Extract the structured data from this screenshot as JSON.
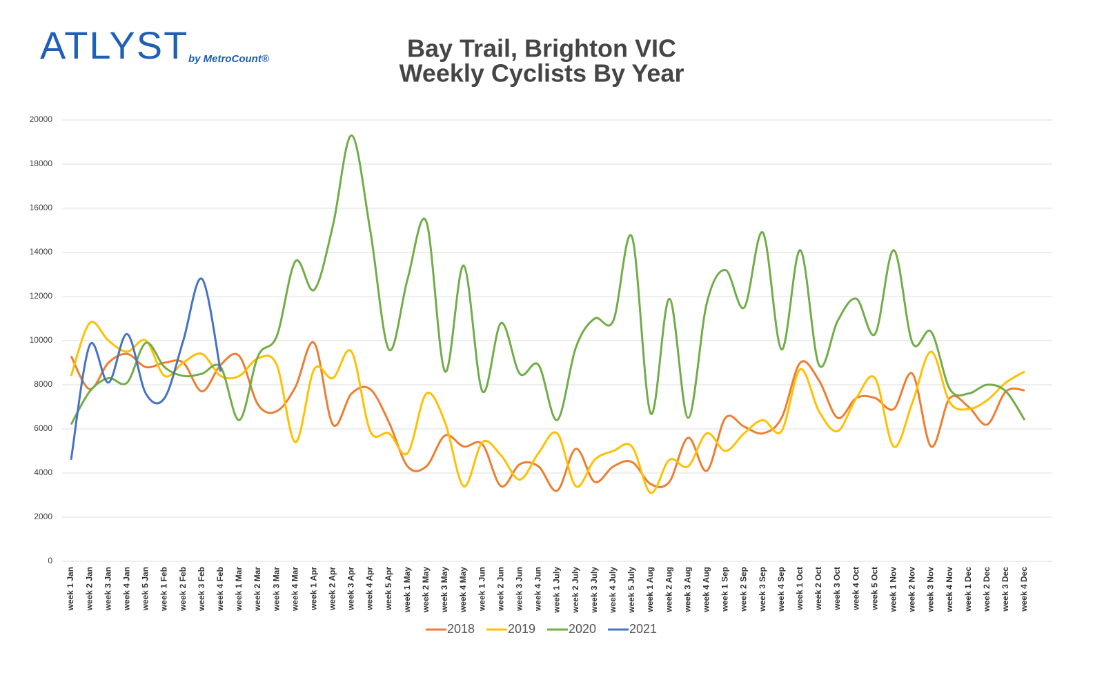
{
  "logo": {
    "name": "ATLYST",
    "byline": "by MetroCount®"
  },
  "chart_data": {
    "type": "line",
    "title": "Bay Trail, Brighton VIC",
    "subtitle": "Weekly Cyclists By Year",
    "categories": [
      "week 1 Jan",
      "week 2 Jan",
      "week 3 Jan",
      "week 4 Jan",
      "week 5 Jan",
      "week 1 Feb",
      "week 2 Feb",
      "week 3 Feb",
      "week 4 Feb",
      "week 1 Mar",
      "week 2  Mar",
      "week 3 Mar",
      "week 4 Mar",
      "week 1 Apr",
      "week 2 Apr",
      "week 3 Apr",
      "week 4 Apr",
      "week 5 Apr",
      "week 1 May",
      "week 2 May",
      "week 3 May",
      "week 4 May",
      "week 1 Jun",
      "week 2 Jun",
      "week 3 Jun",
      "week 4 Jun",
      "week 1 July",
      "week 2 July",
      "week 3 July",
      "week 4 July",
      "week 5 July",
      "week 1 Aug",
      "week 2 Aug",
      "week 3 Aug",
      "week 4 Aug",
      "week 1 Sep",
      "week 2 Sep",
      "week 3 Sep",
      "week 4 Sep",
      "week 1 Oct",
      "week 2 Oct",
      "week 3 Oct",
      "week 4 Oct",
      "week 5 Oct",
      "week 1 Nov",
      "week 2 Nov",
      "week 3 Nov",
      "week 4 Nov",
      "week 1 Dec",
      "week 2 Dec",
      "week 3 Dec",
      "week 4 Dec"
    ],
    "series": [
      {
        "name": "2018",
        "color": "#ed7d31",
        "values": [
          9300,
          7800,
          9000,
          9400,
          8800,
          9000,
          9000,
          7700,
          8900,
          9300,
          7100,
          6800,
          7900,
          9900,
          6200,
          7600,
          7800,
          6300,
          4300,
          4300,
          5700,
          5200,
          5300,
          3400,
          4400,
          4300,
          3200,
          5100,
          3600,
          4300,
          4500,
          3500,
          3600,
          5600,
          4100,
          6500,
          6100,
          5800,
          6500,
          9000,
          8200,
          6500,
          7400,
          7400,
          6900,
          8500,
          5200,
          7400,
          7000,
          6200,
          7700,
          7750
        ]
      },
      {
        "name": "2019",
        "color": "#ffc000",
        "values": [
          8400,
          10800,
          10000,
          9500,
          10000,
          8400,
          9000,
          9400,
          8400,
          8400,
          9200,
          8900,
          5400,
          8700,
          8300,
          9500,
          5900,
          5800,
          4900,
          7600,
          6300,
          3400,
          5400,
          4800,
          3700,
          4900,
          5800,
          3400,
          4600,
          5000,
          5200,
          3100,
          4600,
          4300,
          5800,
          5000,
          5800,
          6400,
          5900,
          8700,
          6800,
          5900,
          7400,
          8300,
          5200,
          7200,
          9500,
          7200,
          6900,
          7300,
          8100,
          8600
        ]
      },
      {
        "name": "2020",
        "color": "#70ad47",
        "values": [
          6200,
          7700,
          8300,
          8100,
          9900,
          8800,
          8400,
          8500,
          8800,
          6400,
          9300,
          10200,
          13600,
          12300,
          15200,
          19300,
          15000,
          9600,
          12800,
          15400,
          8600,
          13400,
          7700,
          10800,
          8500,
          8900,
          6400,
          9700,
          11000,
          10900,
          14700,
          6700,
          11900,
          6500,
          11700,
          13200,
          11500,
          14900,
          9600,
          14100,
          8900,
          10900,
          11900,
          10300,
          14100,
          9900,
          10400,
          7800,
          7600,
          8000,
          7700,
          6400
        ]
      },
      {
        "name": "2021",
        "color": "#4472c4",
        "values": [
          4600,
          9800,
          8100,
          10300,
          7600,
          7400,
          10000,
          12800,
          8600,
          null,
          null,
          null,
          null,
          null,
          null,
          null,
          null,
          null,
          null,
          null,
          null,
          null,
          null,
          null,
          null,
          null,
          null,
          null,
          null,
          null,
          null,
          null,
          null,
          null,
          null,
          null,
          null,
          null,
          null,
          null,
          null,
          null,
          null,
          null,
          null,
          null,
          null,
          null,
          null,
          null,
          null,
          null
        ]
      }
    ],
    "ylim": [
      0,
      20000
    ],
    "yticks": [
      0,
      2000,
      4000,
      6000,
      8000,
      10000,
      12000,
      14000,
      16000,
      18000,
      20000
    ],
    "grid": true,
    "legend": "bottom",
    "smooth": true
  }
}
